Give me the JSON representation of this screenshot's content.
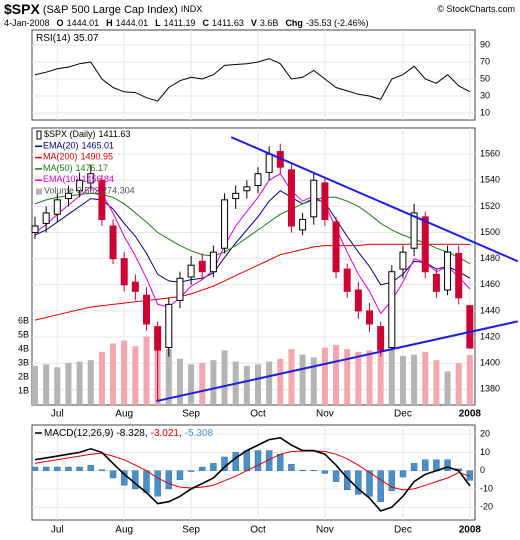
{
  "header": {
    "symbol": "$SPX",
    "name": "(S&P 500 Large Cap Index)",
    "exchange": "INDX",
    "source": "© StockCharts.com",
    "date": "4-Jan-2008",
    "quote": [
      {
        "label": "O",
        "value": "1444.01"
      },
      {
        "label": "H",
        "value": "1444.01"
      },
      {
        "label": "L",
        "value": "1411.19"
      },
      {
        "label": "C",
        "value": "1411.63"
      },
      {
        "label": "V",
        "value": "3.6B"
      },
      {
        "label": "Chg",
        "value": "-35.53 (-2.46%)"
      }
    ]
  },
  "chart_data": [
    {
      "type": "line",
      "name": "RSI(14)",
      "color": "#000000",
      "values": [
        55,
        58,
        62,
        64,
        68,
        70,
        50,
        40,
        35,
        34,
        28,
        24,
        40,
        48,
        52,
        50,
        55,
        66,
        67,
        68,
        70,
        74,
        68,
        50,
        52,
        60,
        50,
        40,
        36,
        32,
        30,
        26,
        50,
        55,
        65,
        50,
        45,
        55,
        42,
        35.07
      ],
      "ylim": [
        1.8,
        107.6
      ],
      "yticks": [
        10,
        30,
        50,
        70,
        90
      ],
      "grid": true
    },
    {
      "type": "candlestick",
      "name": "$SPX (Daily)",
      "up_color": "#000000",
      "down_color": "#cc0033",
      "categories": [
        null,
        null,
        "Jul",
        null,
        null,
        null,
        null,
        null,
        "Aug",
        null,
        null,
        null,
        null,
        null,
        "Sep",
        null,
        null,
        null,
        null,
        null,
        "Oct",
        null,
        null,
        null,
        null,
        null,
        "Nov",
        null,
        null,
        null,
        null,
        null,
        null,
        "Dec",
        null,
        null,
        null,
        null,
        null,
        "2008"
      ],
      "open": [
        1500,
        1507,
        1514,
        1526,
        1532,
        1538,
        1540,
        1505,
        1480,
        1462,
        1452,
        1428,
        1412,
        1448,
        1466,
        1478,
        1470,
        1488,
        1526,
        1532,
        1536,
        1546,
        1562,
        1548,
        1502,
        1512,
        1538,
        1508,
        1472,
        1456,
        1440,
        1428,
        1412,
        1472,
        1488,
        1512,
        1468,
        1456,
        1484,
        1444.01
      ],
      "high": [
        1512,
        1520,
        1530,
        1536,
        1546,
        1552,
        1544,
        1510,
        1485,
        1468,
        1458,
        1432,
        1450,
        1470,
        1482,
        1484,
        1490,
        1530,
        1536,
        1540,
        1550,
        1566,
        1568,
        1552,
        1515,
        1545,
        1542,
        1512,
        1476,
        1462,
        1446,
        1432,
        1475,
        1490,
        1522,
        1516,
        1472,
        1490,
        1490,
        1444.01
      ],
      "low": [
        1495,
        1500,
        1508,
        1520,
        1527,
        1532,
        1505,
        1476,
        1455,
        1448,
        1425,
        1370,
        1405,
        1442,
        1460,
        1465,
        1466,
        1484,
        1518,
        1526,
        1530,
        1540,
        1545,
        1500,
        1498,
        1506,
        1505,
        1465,
        1450,
        1434,
        1424,
        1405,
        1410,
        1465,
        1482,
        1465,
        1450,
        1452,
        1445,
        1411.19
      ],
      "close": [
        1505,
        1515,
        1525,
        1530,
        1540,
        1545,
        1510,
        1480,
        1460,
        1455,
        1430,
        1410,
        1445,
        1465,
        1475,
        1470,
        1485,
        1525,
        1530,
        1535,
        1545,
        1560,
        1550,
        1505,
        1510,
        1540,
        1510,
        1470,
        1455,
        1440,
        1430,
        1410,
        1470,
        1485,
        1515,
        1470,
        1455,
        1485,
        1450,
        1411.63
      ],
      "series": [
        {
          "name": "EMA(20)",
          "color": "#000080",
          "values": [
            1498,
            1502,
            1508,
            1514,
            1520,
            1526,
            1525,
            1518,
            1507,
            1497,
            1484,
            1468,
            1463,
            1462,
            1464,
            1465,
            1469,
            1481,
            1492,
            1502,
            1512,
            1524,
            1532,
            1527,
            1522,
            1526,
            1523,
            1510,
            1497,
            1485,
            1474,
            1460,
            1462,
            1468,
            1478,
            1477,
            1472,
            1474,
            1470,
            1465.01
          ]
        },
        {
          "name": "MA(200)",
          "color": "#dd0000",
          "values": [
            1433,
            1435,
            1437,
            1439,
            1441,
            1443,
            1444,
            1445,
            1446,
            1447,
            1448,
            1449,
            1450,
            1451,
            1453,
            1456,
            1459,
            1463,
            1467,
            1471,
            1475,
            1479,
            1483,
            1485,
            1487,
            1489,
            1490,
            1490,
            1490,
            1490,
            1491,
            1491,
            1491,
            1491,
            1491,
            1491,
            1491,
            1491,
            1491,
            1490.95
          ]
        },
        {
          "name": "MA(50)",
          "color": "#1a7a1a",
          "values": [
            1522,
            1525,
            1527,
            1528,
            1529,
            1530,
            1529,
            1527,
            1522,
            1515,
            1508,
            1500,
            1495,
            1490,
            1486,
            1483,
            1482,
            1485,
            1490,
            1496,
            1502,
            1508,
            1514,
            1518,
            1522,
            1525,
            1527,
            1527,
            1524,
            1520,
            1514,
            1507,
            1502,
            1498,
            1495,
            1492,
            1488,
            1485,
            1481,
            1476.17
          ]
        },
        {
          "name": "EMA(10)",
          "color": "#e000e0",
          "values": [
            1500,
            1506,
            1514,
            1521,
            1528,
            1535,
            1530,
            1515,
            1497,
            1482,
            1465,
            1445,
            1443,
            1450,
            1459,
            1464,
            1471,
            1490,
            1505,
            1516,
            1527,
            1540,
            1545,
            1532,
            1524,
            1528,
            1522,
            1503,
            1485,
            1468,
            1455,
            1438,
            1448,
            1462,
            1480,
            1477,
            1470,
            1474,
            1466,
            1456.84
          ]
        }
      ],
      "volume": {
        "name": "Volume",
        "last_label": "3,562,274,304",
        "color_up": "#b4b4b4",
        "color_down": "#f2a6ae",
        "values": [
          2.8,
          2.9,
          2.7,
          3.0,
          3.1,
          3.2,
          3.8,
          4.4,
          4.6,
          4.2,
          4.9,
          5.5,
          4.0,
          3.3,
          2.9,
          3.0,
          3.2,
          3.9,
          3.1,
          2.8,
          2.9,
          3.1,
          3.3,
          4.0,
          3.6,
          3.4,
          4.1,
          4.3,
          4.0,
          3.8,
          3.9,
          4.2,
          4.0,
          3.5,
          3.6,
          3.8,
          3.2,
          2.4,
          3.0,
          3.562274304
        ]
      },
      "ylim": [
        1368,
        1580
      ],
      "yticks": [
        1380,
        1400,
        1420,
        1440,
        1460,
        1480,
        1500,
        1520,
        1540,
        1560
      ],
      "y2lim": [
        0,
        19.8
      ],
      "y2ticks": [
        {
          "value": 1,
          "label": "1B"
        },
        {
          "value": 2,
          "label": "2B"
        },
        {
          "value": 3,
          "label": "3B"
        },
        {
          "value": 4,
          "label": "4B"
        },
        {
          "value": 5,
          "label": "5B"
        },
        {
          "value": 6,
          "label": "6B"
        }
      ],
      "trendline_color": "#1f1fe0",
      "trendlines": [
        {
          "x": [
            17.6,
            43.3
          ],
          "y": [
            1573,
            1478
          ]
        },
        {
          "x": [
            10.9,
            43.3
          ],
          "y": [
            1371,
            1432
          ]
        }
      ],
      "grid": true
    },
    {
      "type": "macd",
      "separator": ",",
      "macd": {
        "name": "MACD(12,26,9)",
        "color": "#000000",
        "values": [
          6,
          7,
          8,
          9,
          10,
          12,
          10,
          4,
          -2,
          -7,
          -12,
          -18,
          -17,
          -14,
          -10,
          -7,
          -4,
          2,
          7,
          11,
          14,
          17,
          18,
          14,
          11,
          11,
          9,
          3,
          -4,
          -10,
          -15,
          -22,
          -20,
          -14,
          -6,
          -2,
          0,
          2,
          0,
          -8.328
        ]
      },
      "signal": {
        "color": "#dd0000",
        "values": [
          4,
          5,
          6,
          7,
          8,
          9,
          9.5,
          8,
          6,
          3,
          0,
          -4,
          -7,
          -9,
          -9.5,
          -9,
          -8,
          -5.5,
          -3,
          0,
          3,
          6,
          9,
          10.5,
          10.7,
          10.8,
          10.5,
          9,
          6.5,
          3,
          -1,
          -5,
          -9,
          -10.5,
          -10,
          -8,
          -6,
          -4,
          -1,
          -3.021
        ]
      },
      "histogram": {
        "color": "#4a90c8",
        "values": [
          2,
          2,
          2,
          2,
          2,
          3,
          0.5,
          -4,
          -8,
          -10,
          -12,
          -14,
          -10,
          -5,
          -0.5,
          2,
          4,
          7.5,
          10,
          11,
          11,
          11,
          9,
          3.5,
          0.3,
          0.2,
          -1.5,
          -6,
          -10.5,
          -13,
          -14,
          -17,
          -11,
          -3.5,
          4,
          6,
          6,
          6,
          1,
          -5.308
        ]
      },
      "ylim": [
        -27,
        25
      ],
      "yticks": [
        20,
        10,
        0,
        -10,
        -20
      ],
      "grid": true
    }
  ]
}
